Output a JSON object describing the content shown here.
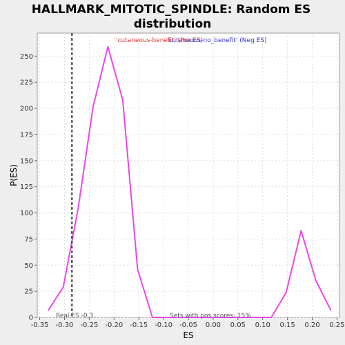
{
  "chart_data": {
    "type": "line",
    "title_line1": "HALLMARK_MITOTIC_SPINDLE: Random ES",
    "title_line2": "distribution",
    "xlabel": "ES",
    "ylabel": "P(ES)",
    "xlim": [
      -0.355,
      0.255
    ],
    "ylim": [
      0,
      272
    ],
    "x_ticks": [
      -0.35,
      -0.3,
      -0.25,
      -0.2,
      -0.15,
      -0.1,
      -0.05,
      0.0,
      0.05,
      0.1,
      0.15,
      0.2,
      0.25
    ],
    "x_tick_labels": [
      "-0.35",
      "-0.30",
      "-0.25",
      "-0.20",
      "-0.15",
      "-0.10",
      "-0.05",
      "0.00",
      "0.05",
      "0.10",
      "0.15",
      "0.20",
      "0.25"
    ],
    "y_ticks": [
      0,
      25,
      50,
      75,
      100,
      125,
      150,
      175,
      200,
      225,
      250
    ],
    "y_tick_labels": [
      "0",
      "25",
      "50",
      "75",
      "100",
      "125",
      "150",
      "175",
      "200",
      "225",
      "250"
    ],
    "grid": true,
    "series": [
      {
        "color": "#ee44ee",
        "x": [
          -0.3325,
          -0.3025,
          -0.2725,
          -0.2425,
          -0.2125,
          -0.1825,
          -0.1525,
          -0.1225,
          -0.0925,
          -0.0625,
          -0.0325,
          -0.0025,
          0.0275,
          0.0575,
          0.0875,
          0.1175,
          0.1475,
          0.1775,
          0.2075,
          0.2375
        ],
        "y": [
          7,
          29,
          104,
          201,
          259,
          208,
          46,
          0,
          0,
          0,
          0,
          0,
          0,
          0,
          0,
          0,
          24,
          83,
          35,
          7
        ]
      }
    ],
    "real_es": -0.285,
    "real_es_color": "#333333",
    "annotations": {
      "pos_label": "'cutaneous-benefit' (Pos ES)",
      "pos_color": "#dd3333",
      "neg_label": "'cutaneous-no_benefit' (Neg ES)",
      "neg_color": "#3333cc",
      "real_es_text": "Real ES -0.3",
      "pos_scores_text": "Sets with pos scores: 15%"
    }
  }
}
